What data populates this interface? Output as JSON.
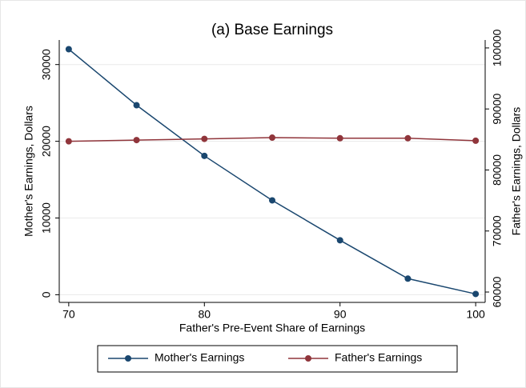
{
  "chart_data": {
    "type": "line",
    "title": "(a) Base Earnings",
    "x_label": "Father's Pre-Event Share of Earnings",
    "y_label": "Mother's Earnings, Dollars",
    "y2_label": "Father's Earnings, Dollars",
    "x": [
      70,
      75,
      80,
      85,
      90,
      95,
      100
    ],
    "series": [
      {
        "name": "Mother's Earnings",
        "color": "#1a476f",
        "values": [
          32000,
          24700,
          18100,
          12300,
          7100,
          2100,
          100
        ]
      },
      {
        "name": "Father's Earnings",
        "color": "#90353b",
        "axis": "y2",
        "values": [
          84700,
          84900,
          85100,
          85300,
          85200,
          85200,
          84800
        ]
      }
    ],
    "xlim": [
      69.3,
      100.7
    ],
    "xticks": [
      70,
      80,
      90,
      100
    ],
    "ylim": [
      -1000,
      33200
    ],
    "yticks": [
      0,
      10000,
      20000,
      30000
    ],
    "y2lim": [
      58300,
      101300
    ],
    "y2ticks": [
      60000,
      70000,
      80000,
      90000,
      100000
    ],
    "grid": true,
    "legend": "bottom"
  }
}
